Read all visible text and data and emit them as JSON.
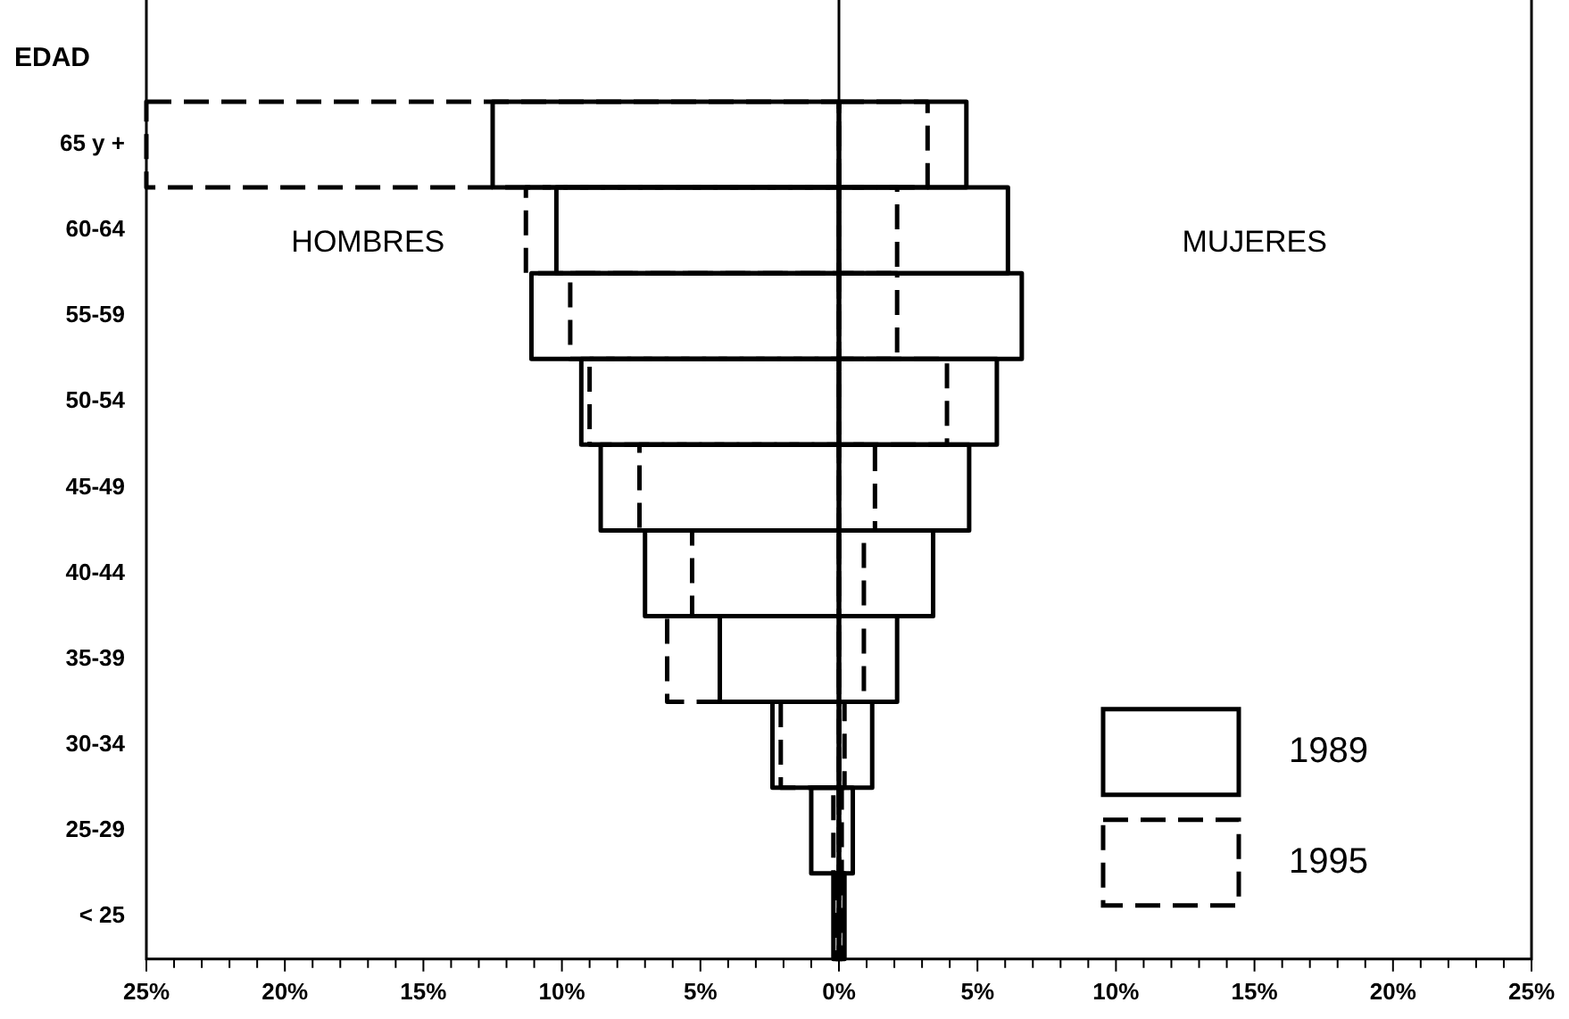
{
  "chart_data": {
    "type": "bar",
    "orientation": "horizontal",
    "ylabel": "EDAD",
    "categories": [
      "65 y +",
      "60-64",
      "55-59",
      "50-54",
      "45-49",
      "40-44",
      "35-39",
      "30-34",
      "25-29",
      "< 25"
    ],
    "series": [
      {
        "name": "1989",
        "color": "#000000",
        "line_style": "solid",
        "values": [
          -12.5,
          -10.2,
          -11.1,
          -9.3,
          -8.6,
          -7.0,
          -4.3,
          -2.4,
          -1.0,
          -0.2
        ]
      },
      {
        "color": "#000000",
        "line_style": "solid",
        "values": [
          4.6,
          6.1,
          6.6,
          5.7,
          4.7,
          3.4,
          2.1,
          1.2,
          0.5,
          0.2
        ]
      },
      {
        "name": "1995",
        "color": "#000000",
        "line_style": "dashed",
        "values": [
          -25.0,
          -11.3,
          -9.7,
          -9.0,
          -7.2,
          -5.3,
          -6.2,
          -2.1,
          -0.2,
          -0.1
        ]
      },
      {
        "color": "#000000",
        "line_style": "dashed",
        "values": [
          3.2,
          2.1,
          2.1,
          3.9,
          1.3,
          0.9,
          0.9,
          0.2,
          0.1,
          0.1
        ]
      }
    ],
    "xlim": [
      -25,
      25
    ],
    "xticks": [
      {
        "value": -25,
        "label": "25%"
      },
      {
        "value": -24,
        "label": null
      },
      {
        "value": -23,
        "label": null
      },
      {
        "value": -22,
        "label": null
      },
      {
        "value": -21,
        "label": null
      },
      {
        "value": -20,
        "label": "20%"
      },
      {
        "value": -19,
        "label": null
      },
      {
        "value": -18,
        "label": null
      },
      {
        "value": -17,
        "label": null
      },
      {
        "value": -16,
        "label": null
      },
      {
        "value": -15,
        "label": "15%"
      },
      {
        "value": -14,
        "label": null
      },
      {
        "value": -13,
        "label": null
      },
      {
        "value": -12,
        "label": null
      },
      {
        "value": -11,
        "label": null
      },
      {
        "value": -10,
        "label": "10%"
      },
      {
        "value": -9,
        "label": null
      },
      {
        "value": -8,
        "label": null
      },
      {
        "value": -7,
        "label": null
      },
      {
        "value": -6,
        "label": null
      },
      {
        "value": -5,
        "label": "5%"
      },
      {
        "value": -4,
        "label": null
      },
      {
        "value": -3,
        "label": null
      },
      {
        "value": -2,
        "label": null
      },
      {
        "value": -1,
        "label": null
      },
      {
        "value": 0,
        "label": "0%"
      },
      {
        "value": 1,
        "label": null
      },
      {
        "value": 2,
        "label": null
      },
      {
        "value": 3,
        "label": null
      },
      {
        "value": 4,
        "label": null
      },
      {
        "value": 5,
        "label": "5%"
      },
      {
        "value": 6,
        "label": null
      },
      {
        "value": 7,
        "label": null
      },
      {
        "value": 8,
        "label": null
      },
      {
        "value": 9,
        "label": null
      },
      {
        "value": 10,
        "label": "10%"
      },
      {
        "value": 11,
        "label": null
      },
      {
        "value": 12,
        "label": null
      },
      {
        "value": 13,
        "label": null
      },
      {
        "value": 14,
        "label": null
      },
      {
        "value": 15,
        "label": "15%"
      },
      {
        "value": 16,
        "label": null
      },
      {
        "value": 17,
        "label": null
      },
      {
        "value": 18,
        "label": null
      },
      {
        "value": 19,
        "label": null
      },
      {
        "value": 20,
        "label": "20%"
      },
      {
        "value": 21,
        "label": null
      },
      {
        "value": 22,
        "label": null
      },
      {
        "value": 23,
        "label": null
      },
      {
        "value": 24,
        "label": null
      },
      {
        "value": 25,
        "label": "25%"
      }
    ],
    "ref_lines": [
      {
        "axis": "x",
        "value": 0,
        "color": "#000000"
      }
    ],
    "annotations": [
      "HOMBRES",
      "MUJERES"
    ],
    "grid": false,
    "legend": "bottom right"
  }
}
